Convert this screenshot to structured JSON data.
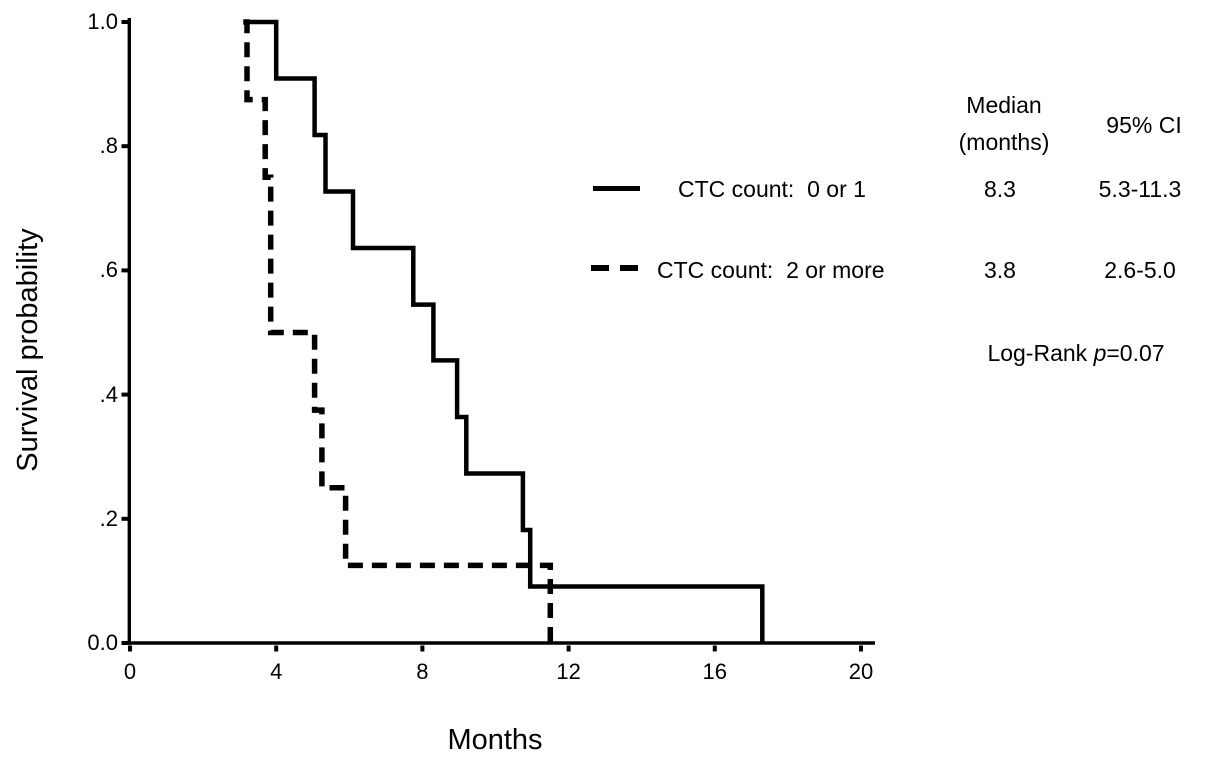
{
  "figure": {
    "background": "#ffffff",
    "ink_color": "#000000"
  },
  "chart_data": {
    "type": "line",
    "subtype": "kaplan_meier_step",
    "title": "",
    "xlabel": "Months",
    "ylabel": "Survival probability",
    "xlim": [
      0,
      20
    ],
    "ylim": [
      0,
      1.0
    ],
    "grid": false,
    "legend_position": "right",
    "x_ticks": [
      0,
      4,
      8,
      12,
      16,
      20
    ],
    "x_tick_labels": [
      "0",
      "4",
      "8",
      "12",
      "16",
      "20"
    ],
    "y_ticks": [
      0,
      0.2,
      0.4,
      0.6,
      0.8,
      1.0
    ],
    "y_tick_labels": [
      "0.0",
      ".2",
      ".4",
      ".6",
      ".8",
      "1.0"
    ],
    "series": [
      {
        "name": "CTC count: 0 or 1",
        "line_style": "solid",
        "median_months": 8.3,
        "ci_95": "5.3-11.3",
        "points": [
          [
            3.25,
            1.0
          ],
          [
            4.0,
            1.0
          ],
          [
            4.0,
            0.909
          ],
          [
            5.05,
            0.909
          ],
          [
            5.05,
            0.818
          ],
          [
            5.35,
            0.818
          ],
          [
            5.35,
            0.727
          ],
          [
            6.1,
            0.727
          ],
          [
            6.1,
            0.636
          ],
          [
            7.75,
            0.636
          ],
          [
            7.75,
            0.545
          ],
          [
            8.3,
            0.545
          ],
          [
            8.3,
            0.455
          ],
          [
            8.95,
            0.455
          ],
          [
            8.95,
            0.364
          ],
          [
            9.2,
            0.364
          ],
          [
            9.2,
            0.273
          ],
          [
            10.75,
            0.273
          ],
          [
            10.75,
            0.182
          ],
          [
            10.95,
            0.182
          ],
          [
            10.95,
            0.091
          ],
          [
            17.3,
            0.091
          ],
          [
            17.3,
            0.0
          ]
        ]
      },
      {
        "name": "CTC count: 2 or more",
        "line_style": "dashed",
        "median_months": 3.8,
        "ci_95": "2.6-5.0",
        "points": [
          [
            3.1,
            1.0
          ],
          [
            3.2,
            1.0
          ],
          [
            3.2,
            0.875
          ],
          [
            3.7,
            0.875
          ],
          [
            3.7,
            0.75
          ],
          [
            3.85,
            0.75
          ],
          [
            3.85,
            0.5
          ],
          [
            5.05,
            0.5
          ],
          [
            5.05,
            0.375
          ],
          [
            5.25,
            0.375
          ],
          [
            5.25,
            0.25
          ],
          [
            5.9,
            0.25
          ],
          [
            5.9,
            0.125
          ],
          [
            11.5,
            0.125
          ],
          [
            11.5,
            0.0
          ]
        ]
      }
    ]
  },
  "axis_titles": {
    "x": "Months",
    "y": "Survival probability"
  },
  "legend": {
    "header": {
      "median_line1": "Median",
      "median_line2": "(months)",
      "ci": "95% CI"
    },
    "rows": [
      {
        "label": "CTC count:  0 or 1",
        "median": "8.3",
        "ci": "5.3-11.3"
      },
      {
        "label": "CTC count:  2 or more",
        "median": "3.8",
        "ci": "2.6-5.0"
      }
    ]
  },
  "stats": {
    "logrank_prefix": "Log-Rank ",
    "p_symbol": "p",
    "p_value": "=0.07"
  }
}
